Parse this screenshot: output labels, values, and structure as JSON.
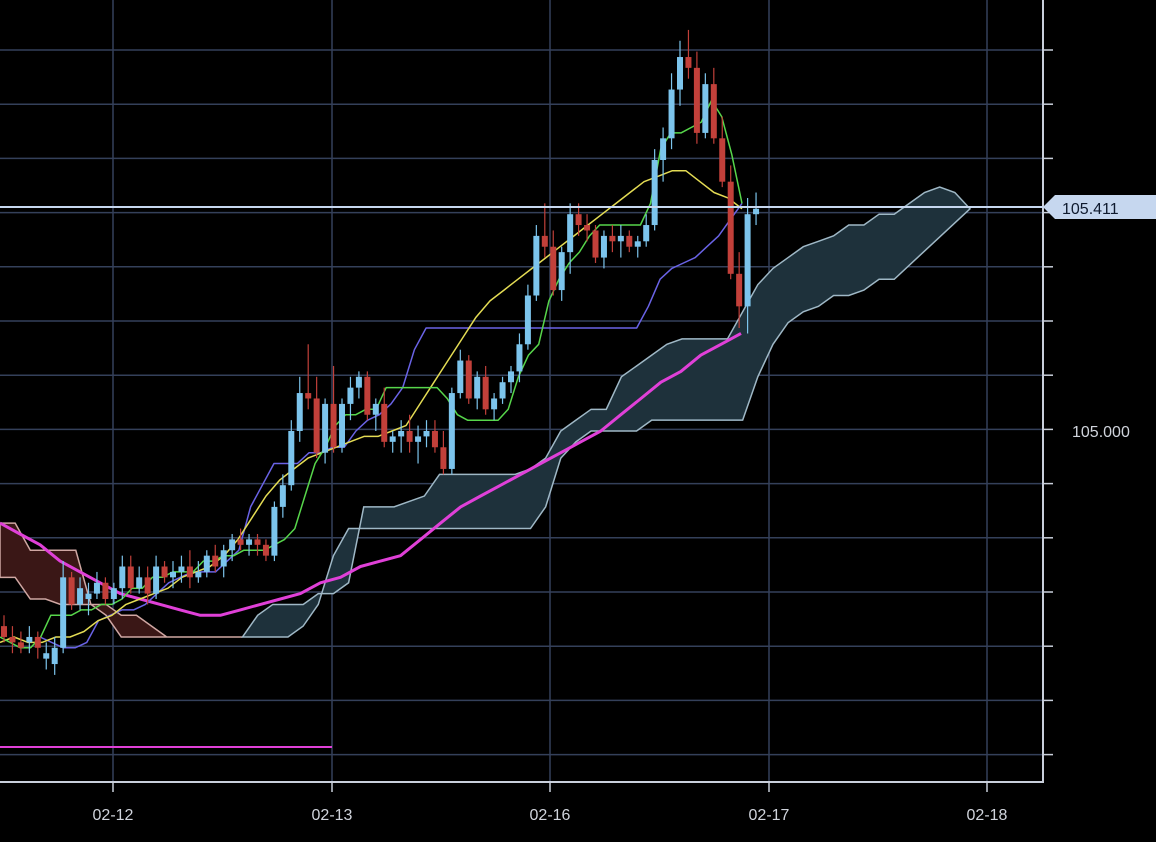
{
  "chart_data": {
    "type": "candlestick",
    "title": "",
    "xlabel": "",
    "ylabel": "",
    "x_ticks": [
      "02-12",
      "02-13",
      "02-16",
      "02-17",
      "02-18"
    ],
    "y_ticks": [
      105.0
    ],
    "ylim": [
      104.4,
      105.8
    ],
    "grid": true,
    "current_price": {
      "value": 105.411,
      "label": "105.411"
    },
    "y_label_text": "105.000",
    "colors": {
      "background": "#000000",
      "grid": "#34405a",
      "up": "#7cc4ec",
      "down": "#c2403a",
      "tenkan": "#57d64b",
      "kijun": "#6a63e6",
      "ma_short": "#e4dc54",
      "ma_long": "#e040d8",
      "cloud_bull_fill": "#1e313b",
      "cloud_bear_fill": "#3a1716",
      "price_line": "#c6d7ef"
    },
    "candles": [
      [
        104.64,
        104.66,
        104.61,
        104.62
      ],
      [
        104.62,
        104.64,
        104.59,
        104.61
      ],
      [
        104.61,
        104.63,
        104.59,
        104.6
      ],
      [
        104.61,
        104.64,
        104.59,
        104.62
      ],
      [
        104.62,
        104.63,
        104.58,
        104.6
      ],
      [
        104.58,
        104.61,
        104.56,
        104.59
      ],
      [
        104.57,
        104.62,
        104.55,
        104.6
      ],
      [
        104.6,
        104.76,
        104.59,
        104.73
      ],
      [
        104.73,
        104.74,
        104.67,
        104.68
      ],
      [
        104.68,
        104.73,
        104.67,
        104.71
      ],
      [
        104.69,
        104.72,
        104.66,
        104.7
      ],
      [
        104.7,
        104.74,
        104.69,
        104.72
      ],
      [
        104.72,
        104.73,
        104.68,
        104.69
      ],
      [
        104.69,
        104.72,
        104.68,
        104.71
      ],
      [
        104.71,
        104.77,
        104.69,
        104.75
      ],
      [
        104.75,
        104.77,
        104.7,
        104.71
      ],
      [
        104.71,
        104.75,
        104.7,
        104.73
      ],
      [
        104.73,
        104.75,
        104.68,
        104.7
      ],
      [
        104.7,
        104.77,
        104.69,
        104.75
      ],
      [
        104.75,
        104.76,
        104.72,
        104.73
      ],
      [
        104.73,
        104.76,
        104.71,
        104.74
      ],
      [
        104.74,
        104.77,
        104.72,
        104.75
      ],
      [
        104.75,
        104.78,
        104.71,
        104.73
      ],
      [
        104.73,
        104.76,
        104.72,
        104.74
      ],
      [
        104.74,
        104.78,
        104.73,
        104.77
      ],
      [
        104.77,
        104.79,
        104.74,
        104.75
      ],
      [
        104.75,
        104.79,
        104.73,
        104.78
      ],
      [
        104.78,
        104.81,
        104.76,
        104.8
      ],
      [
        104.8,
        104.82,
        104.78,
        104.79
      ],
      [
        104.79,
        104.81,
        104.77,
        104.8
      ],
      [
        104.8,
        104.81,
        104.77,
        104.79
      ],
      [
        104.79,
        104.8,
        104.76,
        104.77
      ],
      [
        104.77,
        104.87,
        104.76,
        104.86
      ],
      [
        104.86,
        104.92,
        104.84,
        104.9
      ],
      [
        104.9,
        105.02,
        104.89,
        105.0
      ],
      [
        105.0,
        105.1,
        104.98,
        105.07
      ],
      [
        105.07,
        105.16,
        105.04,
        105.06
      ],
      [
        105.06,
        105.1,
        104.95,
        104.96
      ],
      [
        104.96,
        105.06,
        104.94,
        105.05
      ],
      [
        105.05,
        105.12,
        104.96,
        104.97
      ],
      [
        104.97,
        105.06,
        104.96,
        105.05
      ],
      [
        105.05,
        105.1,
        105.02,
        105.08
      ],
      [
        105.08,
        105.11,
        105.06,
        105.1
      ],
      [
        105.1,
        105.11,
        105.02,
        105.03
      ],
      [
        105.03,
        105.06,
        105.0,
        105.05
      ],
      [
        105.05,
        105.08,
        104.97,
        104.98
      ],
      [
        104.98,
        105.0,
        104.96,
        104.99
      ],
      [
        104.99,
        105.02,
        104.96,
        105.0
      ],
      [
        105.0,
        105.03,
        104.96,
        104.98
      ],
      [
        104.98,
        105.01,
        104.94,
        104.99
      ],
      [
        104.99,
        105.02,
        104.97,
        105.0
      ],
      [
        105.0,
        105.02,
        104.96,
        104.97
      ],
      [
        104.97,
        105.0,
        104.92,
        104.93
      ],
      [
        104.93,
        105.08,
        104.92,
        105.07
      ],
      [
        105.07,
        105.15,
        105.06,
        105.13
      ],
      [
        105.13,
        105.14,
        105.05,
        105.06
      ],
      [
        105.06,
        105.11,
        105.04,
        105.1
      ],
      [
        105.1,
        105.12,
        105.03,
        105.04
      ],
      [
        105.04,
        105.07,
        105.02,
        105.06
      ],
      [
        105.06,
        105.1,
        105.05,
        105.09
      ],
      [
        105.09,
        105.12,
        105.07,
        105.11
      ],
      [
        105.11,
        105.18,
        105.09,
        105.16
      ],
      [
        105.16,
        105.27,
        105.15,
        105.25
      ],
      [
        105.25,
        105.38,
        105.24,
        105.36
      ],
      [
        105.36,
        105.42,
        105.32,
        105.34
      ],
      [
        105.34,
        105.37,
        105.25,
        105.26
      ],
      [
        105.26,
        105.34,
        105.24,
        105.33
      ],
      [
        105.33,
        105.42,
        105.29,
        105.4
      ],
      [
        105.4,
        105.42,
        105.36,
        105.38
      ],
      [
        105.38,
        105.4,
        105.35,
        105.37
      ],
      [
        105.37,
        105.38,
        105.31,
        105.32
      ],
      [
        105.32,
        105.37,
        105.3,
        105.36
      ],
      [
        105.36,
        105.38,
        105.33,
        105.35
      ],
      [
        105.35,
        105.38,
        105.32,
        105.36
      ],
      [
        105.36,
        105.37,
        105.33,
        105.34
      ],
      [
        105.34,
        105.36,
        105.32,
        105.35
      ],
      [
        105.35,
        105.4,
        105.34,
        105.38
      ],
      [
        105.38,
        105.52,
        105.37,
        105.5
      ],
      [
        105.5,
        105.56,
        105.46,
        105.54
      ],
      [
        105.54,
        105.66,
        105.52,
        105.63
      ],
      [
        105.63,
        105.72,
        105.6,
        105.69
      ],
      [
        105.69,
        105.74,
        105.65,
        105.67
      ],
      [
        105.67,
        105.7,
        105.53,
        105.55
      ],
      [
        105.55,
        105.66,
        105.54,
        105.64
      ],
      [
        105.64,
        105.67,
        105.53,
        105.54
      ],
      [
        105.54,
        105.58,
        105.45,
        105.46
      ],
      [
        105.46,
        105.49,
        105.28,
        105.29
      ],
      [
        105.29,
        105.33,
        105.19,
        105.23
      ],
      [
        105.23,
        105.43,
        105.18,
        105.4
      ],
      [
        105.4,
        105.44,
        105.38,
        105.41
      ]
    ],
    "indicators": {
      "tenkan": [
        104.62,
        104.61,
        104.6,
        104.6,
        104.62,
        104.66,
        104.66,
        104.66,
        104.67,
        104.67,
        104.68,
        104.68,
        104.69,
        104.71,
        104.71,
        104.73,
        104.73,
        104.74,
        104.74,
        104.74,
        104.76,
        104.76,
        104.77,
        104.77,
        104.78,
        104.78,
        104.78,
        104.79,
        104.8,
        104.82,
        104.88,
        104.94,
        104.97,
        105.01,
        105.03,
        105.03,
        105.04,
        105.04,
        105.08,
        105.08,
        105.08,
        105.08,
        105.08,
        105.08,
        105.06,
        105.03,
        105.02,
        105.02,
        105.02,
        105.02,
        105.04,
        105.1,
        105.14,
        105.16,
        105.24,
        105.28,
        105.31,
        105.33,
        105.36,
        105.38,
        105.38,
        105.38,
        105.38,
        105.38,
        105.42,
        105.52,
        105.55,
        105.55,
        105.56,
        105.57,
        105.61,
        105.58,
        105.51,
        105.42
      ],
      "kijun": [
        104.62,
        104.61,
        104.6,
        104.6,
        104.61,
        104.65,
        104.66,
        104.67,
        104.67,
        104.68,
        104.7,
        104.72,
        104.73,
        104.74,
        104.74,
        104.74,
        104.76,
        104.78,
        104.86,
        104.9,
        104.94,
        104.94,
        104.94,
        104.96,
        104.96,
        104.97,
        104.97,
        105.0,
        105.02,
        105.03,
        105.05,
        105.08,
        105.15,
        105.19,
        105.19,
        105.19,
        105.19,
        105.19,
        105.19,
        105.19,
        105.19,
        105.19,
        105.19,
        105.19,
        105.19,
        105.19,
        105.19,
        105.19,
        105.19,
        105.19,
        105.19,
        105.19,
        105.23,
        105.28,
        105.3,
        105.31,
        105.32,
        105.34,
        105.36,
        105.39,
        105.42
      ],
      "ma_short": [
        104.61,
        104.62,
        104.61,
        104.61,
        104.62,
        104.62,
        104.63,
        104.65,
        104.66,
        104.68,
        104.69,
        104.7,
        104.71,
        104.73,
        104.74,
        104.75,
        104.77,
        104.8,
        104.84,
        104.88,
        104.91,
        104.93,
        104.95,
        104.96,
        104.97,
        104.98,
        104.99,
        104.99,
        105.0,
        105.01,
        105.05,
        105.09,
        105.13,
        105.17,
        105.21,
        105.24,
        105.26,
        105.28,
        105.3,
        105.32,
        105.34,
        105.36,
        105.38,
        105.4,
        105.42,
        105.44,
        105.46,
        105.47,
        105.48,
        105.48,
        105.46,
        105.44,
        105.43,
        105.41
      ],
      "ma_long": [
        104.83,
        104.81,
        104.79,
        104.76,
        104.74,
        104.72,
        104.7,
        104.69,
        104.68,
        104.67,
        104.66,
        104.66,
        104.67,
        104.68,
        104.69,
        104.7,
        104.72,
        104.73,
        104.75,
        104.76,
        104.77,
        104.8,
        104.83,
        104.86,
        104.88,
        104.9,
        104.92,
        104.94,
        104.96,
        104.98,
        105.0,
        105.03,
        105.06,
        105.09,
        105.11,
        105.14,
        105.16,
        105.18
      ],
      "span_a": [
        104.83,
        104.83,
        104.78,
        104.78,
        104.78,
        104.78,
        104.68,
        104.68,
        104.66,
        104.66,
        104.64,
        104.62,
        104.62,
        104.62,
        104.62,
        104.62,
        104.62,
        104.66,
        104.68,
        104.68,
        104.68,
        104.7,
        104.7,
        104.72,
        104.86,
        104.86,
        104.86,
        104.87,
        104.88,
        104.92,
        104.92,
        104.92,
        104.92,
        104.92,
        104.92,
        104.93,
        104.95,
        105.0,
        105.02,
        105.04,
        105.04,
        105.1,
        105.12,
        105.14,
        105.16,
        105.17,
        105.17,
        105.17,
        105.17,
        105.22,
        105.27,
        105.3,
        105.32,
        105.34,
        105.35,
        105.36,
        105.38,
        105.38,
        105.4,
        105.4,
        105.42,
        105.44,
        105.45,
        105.44,
        105.41
      ],
      "span_b": [
        104.73,
        104.73,
        104.69,
        104.69,
        104.68,
        104.68,
        104.68,
        104.66,
        104.62,
        104.62,
        104.62,
        104.62,
        104.62,
        104.62,
        104.62,
        104.62,
        104.62,
        104.62,
        104.62,
        104.62,
        104.64,
        104.68,
        104.77,
        104.82,
        104.82,
        104.82,
        104.82,
        104.82,
        104.82,
        104.82,
        104.82,
        104.82,
        104.82,
        104.82,
        104.82,
        104.82,
        104.86,
        104.95,
        104.98,
        105.0,
        105.0,
        105.0,
        105.0,
        105.02,
        105.02,
        105.02,
        105.02,
        105.02,
        105.02,
        105.02,
        105.1,
        105.16,
        105.2,
        105.22,
        105.23,
        105.25,
        105.25,
        105.26,
        105.28,
        105.28
      ]
    }
  }
}
